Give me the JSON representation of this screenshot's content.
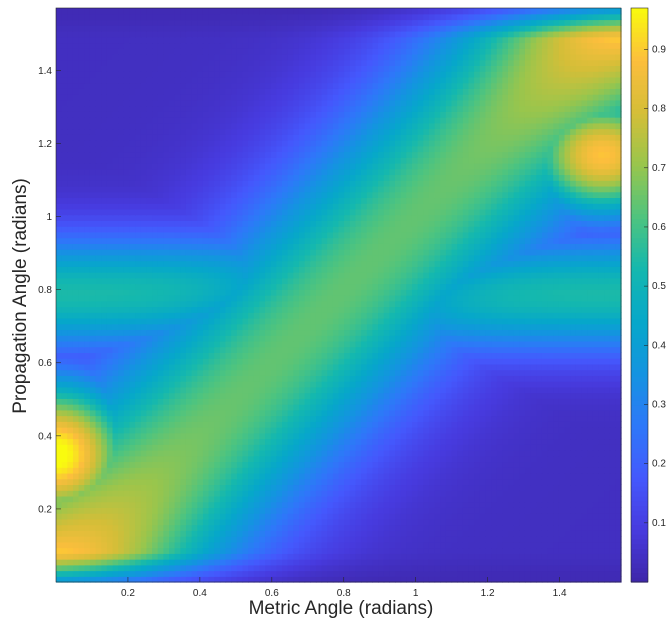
{
  "chart_data": {
    "type": "heatmap",
    "title": "",
    "xlabel": "Metric Angle (radians)",
    "ylabel": "Propagation Angle (radians)",
    "xlim": [
      0,
      1.5708
    ],
    "ylim": [
      0,
      1.5708
    ],
    "x_ticks": [
      "0.2",
      "0.4",
      "0.6",
      "0.8",
      "1",
      "1.2",
      "1.4"
    ],
    "y_ticks": [
      "0.2",
      "0.4",
      "0.6",
      "0.8",
      "1",
      "1.2",
      "1.4"
    ],
    "x_tick_values": [
      0.2,
      0.4,
      0.6,
      0.8,
      1.0,
      1.2,
      1.4
    ],
    "y_tick_values": [
      0.2,
      0.4,
      0.6,
      0.8,
      1.0,
      1.2,
      1.4
    ],
    "colorbar": {
      "colormap": "parula",
      "range": [
        0,
        0.97
      ],
      "ticks": [
        "0.1",
        "0.2",
        "0.3",
        "0.4",
        "0.5",
        "0.6",
        "0.7",
        "0.8",
        "0.9"
      ],
      "tick_values": [
        0.1,
        0.2,
        0.3,
        0.4,
        0.5,
        0.6,
        0.7,
        0.8,
        0.9
      ]
    },
    "grid": false,
    "grid_resolution": 100,
    "features": {
      "diagonal_ridge": "values near 0.6-0.7 along y = x, rising to ~0.97 at both ends",
      "peaks": [
        {
          "x": 0.03,
          "y": 0.35,
          "value": 0.95
        },
        {
          "x": 1.5,
          "y": 1.17,
          "value": 0.85
        }
      ],
      "horizontal_band": {
        "y": 0.79,
        "value": 0.5
      },
      "minimum": 0.02
    }
  }
}
